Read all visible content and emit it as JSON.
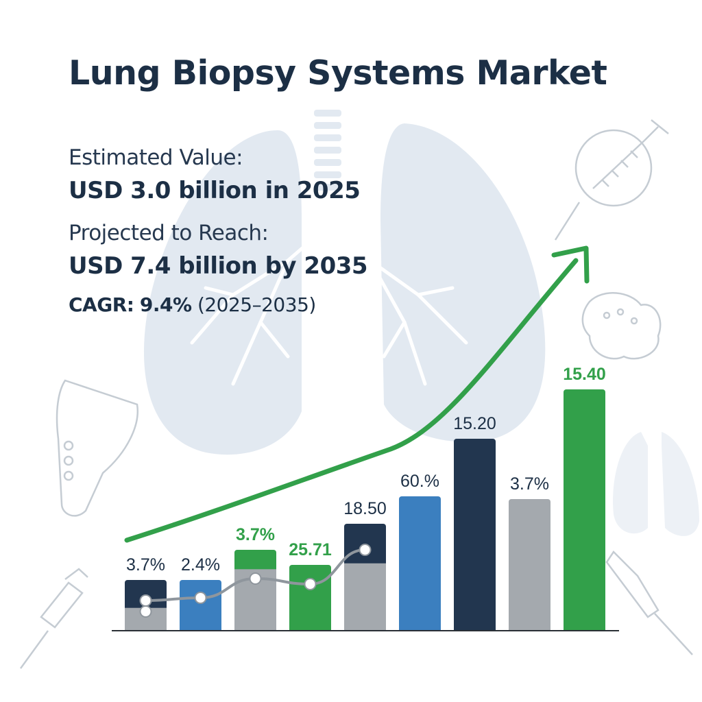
{
  "header": {
    "title": "Lung Biopsy Systems Market"
  },
  "stats": {
    "estimated_label": "Estimated Value:",
    "estimated_value": "USD 3.0 billion in 2025",
    "projected_label": "Projected to Reach:",
    "projected_value": "USD 7.4 billion by 2035",
    "cagr_label": "CAGR:",
    "cagr_value": "9.4%",
    "cagr_period": "(2025–2035)"
  },
  "colors": {
    "navy": "#22364f",
    "blue": "#3b7fbf",
    "green": "#32a04a",
    "gray": "#a4a9ae",
    "arrow": "#32a04a",
    "lung": "#e2e9f1"
  },
  "icons": [
    "lungs-icon",
    "syringe-icon",
    "ultrasound-probe-icon",
    "tissue-sample-icon",
    "biopsy-needle-icon",
    "bronchoscope-icon"
  ],
  "chart_data": {
    "type": "bar",
    "bars": [
      {
        "label": "3.7%",
        "label_color": "#1c2f45",
        "height": 3.7,
        "top_color": "#22364f",
        "bottom_color": "#a4a9ae",
        "split": 0.45
      },
      {
        "label": "2.4%",
        "label_color": "#1c2f45",
        "height": 3.7,
        "top_color": "#3b7fbf",
        "bottom_color": "#3b7fbf",
        "split": 0
      },
      {
        "label": "3.7%",
        "label_color": "#32a04a",
        "height": 5.9,
        "top_color": "#32a04a",
        "bottom_color": "#a4a9ae",
        "split": 0.76
      },
      {
        "label": "25.71",
        "label_color": "#32a04a",
        "height": 4.8,
        "top_color": "#32a04a",
        "bottom_color": "#32a04a",
        "split": 0
      },
      {
        "label": "18.50",
        "label_color": "#1c2f45",
        "height": 7.8,
        "top_color": "#22364f",
        "bottom_color": "#a4a9ae",
        "split": 0.63
      },
      {
        "label": "60.%",
        "label_color": "#1c2f45",
        "height": 9.8,
        "top_color": "#3b7fbf",
        "bottom_color": "#3b7fbf",
        "split": 0
      },
      {
        "label": "15.20",
        "label_color": "#1c2f45",
        "height": 14.0,
        "top_color": "#22364f",
        "bottom_color": "#22364f",
        "split": 0
      },
      {
        "label": "3.7%",
        "label_color": "#1c2f45",
        "height": 9.6,
        "top_color": "#a4a9ae",
        "bottom_color": "#a4a9ae",
        "split": 0
      },
      {
        "label": "15.40",
        "label_color": "#32a04a",
        "height": 17.6,
        "top_color": "#32a04a",
        "bottom_color": "#32a04a",
        "split": 0
      }
    ],
    "line_points": [
      2.2,
      2.4,
      3.8,
      3.4,
      5.9
    ],
    "ylim": [
      0,
      24
    ],
    "grid": false,
    "trend": "rising arrow"
  }
}
